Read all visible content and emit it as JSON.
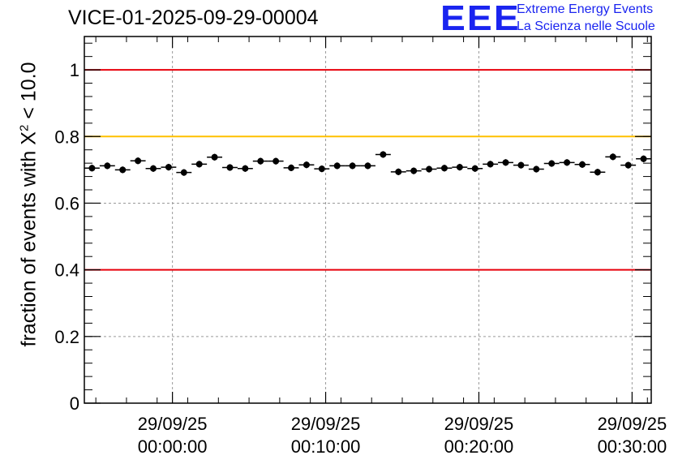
{
  "chart_data": {
    "type": "scatter",
    "title": "VICE-01-2025-09-29-00004",
    "xlabel": "",
    "ylabel": "fraction of events with",
    "ylabel_symbol": "X",
    "ylabel_sup": "2",
    "ylabel_tail": "< 10.0",
    "ylim": [
      0,
      1.1
    ],
    "yticks": [
      "0",
      "0.2",
      "0.4",
      "0.6",
      "0.8",
      "1"
    ],
    "xticks": [
      {
        "minute": 0,
        "date": "29/09/25",
        "time": "00:00:00"
      },
      {
        "minute": 10,
        "date": "29/09/25",
        "time": "00:10:00"
      },
      {
        "minute": 20,
        "date": "29/09/25",
        "time": "00:20:00"
      },
      {
        "minute": 30,
        "date": "29/09/25",
        "time": "00:30:00"
      }
    ],
    "xlim_minutes": [
      -5.75,
      31.25
    ],
    "bin_width_minutes": 1,
    "grid": true,
    "reference_lines": [
      {
        "value": 1.0,
        "color": "#e8000b"
      },
      {
        "value": 0.8,
        "color": "#ffc000"
      },
      {
        "value": 0.4,
        "color": "#e8000b"
      }
    ],
    "series": [
      {
        "name": "fraction",
        "color": "#000000",
        "x_minutes": [
          -5.25,
          -4.25,
          -3.25,
          -2.25,
          -1.25,
          -0.25,
          0.75,
          1.75,
          2.75,
          3.75,
          4.75,
          5.75,
          6.75,
          7.75,
          8.75,
          9.75,
          10.75,
          11.75,
          12.75,
          13.75,
          14.75,
          15.75,
          16.75,
          17.75,
          18.75,
          19.75,
          20.75,
          21.75,
          22.75,
          23.75,
          24.75,
          25.75,
          26.75,
          27.75,
          28.75,
          29.75,
          30.75
        ],
        "values": [
          0.705,
          0.712,
          0.7,
          0.727,
          0.704,
          0.708,
          0.692,
          0.717,
          0.738,
          0.707,
          0.704,
          0.726,
          0.726,
          0.706,
          0.715,
          0.703,
          0.712,
          0.712,
          0.712,
          0.746,
          0.694,
          0.697,
          0.702,
          0.705,
          0.708,
          0.704,
          0.717,
          0.722,
          0.714,
          0.702,
          0.719,
          0.722,
          0.716,
          0.693,
          0.739,
          0.714,
          0.733
        ]
      }
    ]
  },
  "logo": {
    "mark": "EEE",
    "line1": "Extreme Energy Events",
    "line2": "La Scienza nelle Scuole"
  },
  "colors": {
    "marker": "#000000",
    "logo": "#1a24f0",
    "grid": "#9a9a9a"
  }
}
